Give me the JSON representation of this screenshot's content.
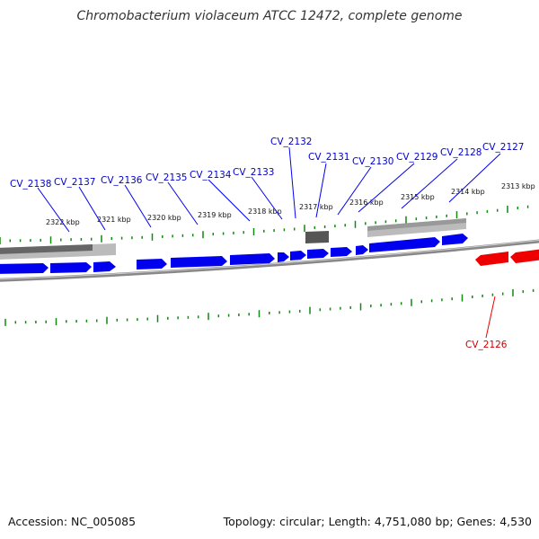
{
  "title": "Chromobacterium violaceum ATCC 12472, complete genome",
  "footer": {
    "accession": "Accession: NC_005085",
    "topology": "Topology: circular; Length: 4,751,080 bp; Genes: 4,530"
  },
  "colors": {
    "forward_gene": "#0000ee",
    "reverse_gene": "#ee0000",
    "rna_dark": "#555555",
    "rna_light": "#bbbbbb",
    "tick": "#118811",
    "label_blue": "#0000cc",
    "label_red": "#cc0000",
    "backbone": "#888888"
  },
  "scale_labels": [
    "2322 kbp",
    "2321 kbp",
    "2320 kbp",
    "2319 kbp",
    "2318 kbp",
    "2317 kbp",
    "2316 kbp",
    "2315 kbp",
    "2314 kbp",
    "2313 kbp"
  ],
  "gene_labels": [
    {
      "text": "CV_2138",
      "strand": "forward"
    },
    {
      "text": "CV_2137",
      "strand": "forward"
    },
    {
      "text": "CV_2136",
      "strand": "forward"
    },
    {
      "text": "CV_2135",
      "strand": "forward"
    },
    {
      "text": "CV_2134",
      "strand": "forward"
    },
    {
      "text": "CV_2133",
      "strand": "forward"
    },
    {
      "text": "CV_2132",
      "strand": "forward"
    },
    {
      "text": "CV_2131",
      "strand": "forward"
    },
    {
      "text": "CV_2130",
      "strand": "forward"
    },
    {
      "text": "CV_2129",
      "strand": "forward"
    },
    {
      "text": "CV_2128",
      "strand": "forward"
    },
    {
      "text": "CV_2127",
      "strand": "forward"
    },
    {
      "text": "CV_2126",
      "strand": "reverse"
    }
  ]
}
